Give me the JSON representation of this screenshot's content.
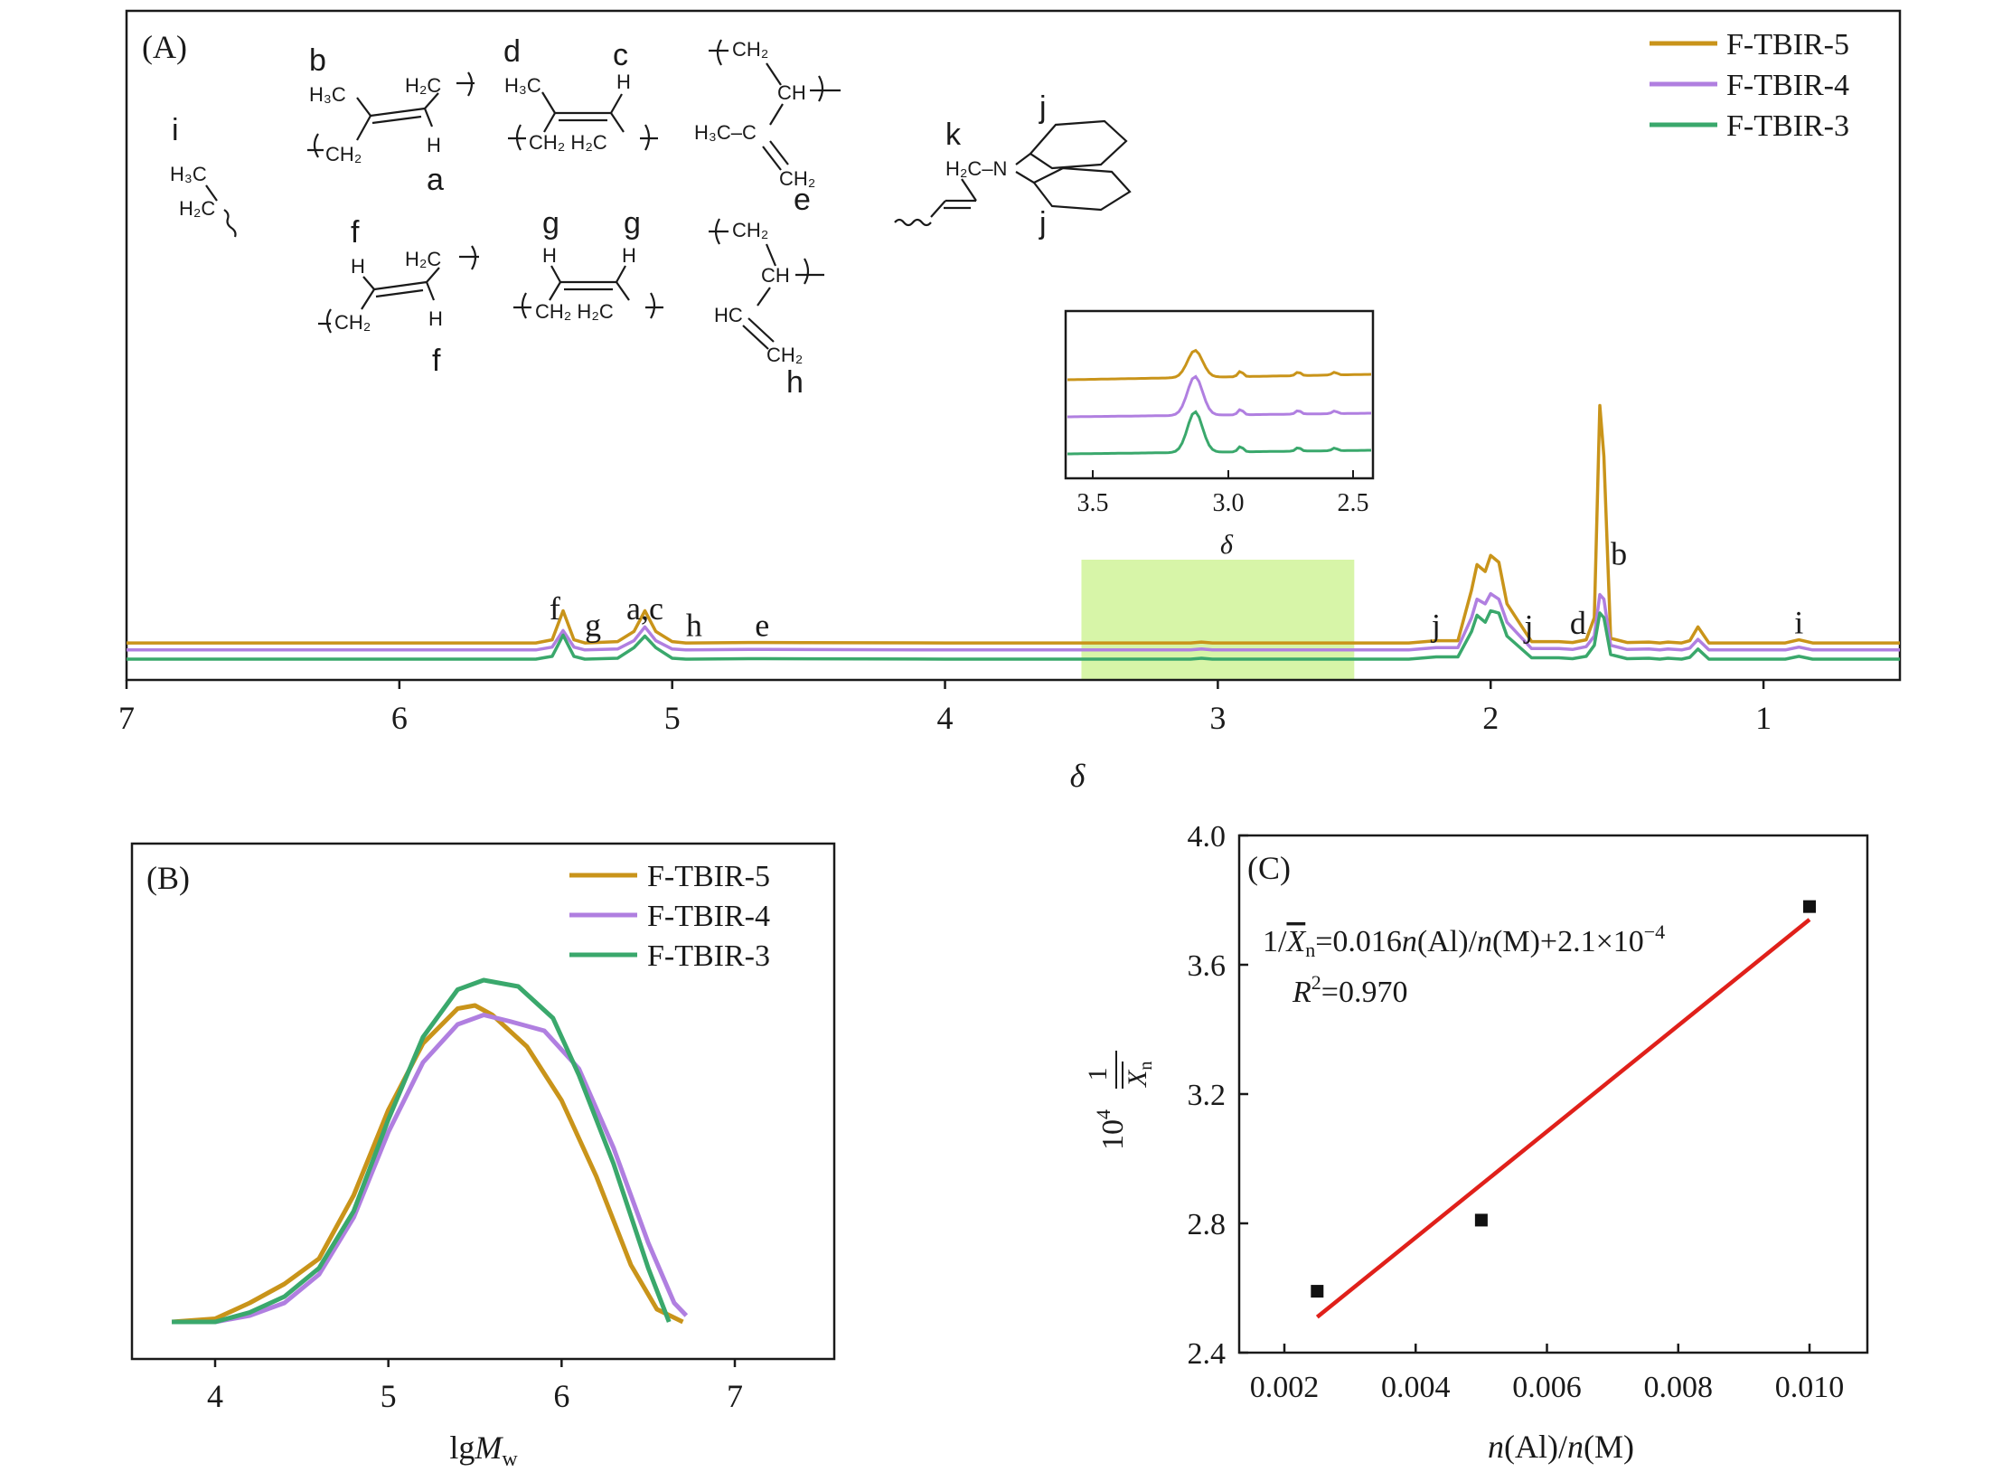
{
  "colors": {
    "F-TBIR-5": "#c9941a",
    "F-TBIR-4": "#b07fe0",
    "F-TBIR-3": "#3aa86c",
    "fit_line": "#e0201a",
    "highlight": "#d7f5a8",
    "axis": "#1a1a1a"
  },
  "chart_data": [
    {
      "id": "A",
      "type": "line",
      "panel_label": "(A)",
      "xlabel": "δ",
      "xlim": [
        7,
        0.5
      ],
      "x_ticks": [
        7,
        6,
        5,
        4,
        3,
        2,
        1
      ],
      "x_tick_labels": [
        "7",
        "6",
        "5",
        "4",
        "3",
        "2",
        "1"
      ],
      "y_ticks_shown": false,
      "legend": {
        "position": "top-right",
        "entries": [
          "F-TBIR-5",
          "F-TBIR-4",
          "F-TBIR-3"
        ]
      },
      "series": [
        {
          "name": "F-TBIR-5",
          "baseline": 0.35,
          "x": [
            0.5,
            0.82,
            0.87,
            0.92,
            1.2,
            1.24,
            1.27,
            1.3,
            1.35,
            1.38,
            1.42,
            1.5,
            1.56,
            1.585,
            1.6,
            1.62,
            1.65,
            1.7,
            1.75,
            1.85,
            1.94,
            1.97,
            2.0,
            2.02,
            2.05,
            2.07,
            2.12,
            2.2,
            2.3,
            2.8,
            3.02,
            3.06,
            3.1,
            3.5,
            4.0,
            4.66,
            4.72,
            4.95,
            5.0,
            5.06,
            5.1,
            5.14,
            5.2,
            5.32,
            5.36,
            5.4,
            5.44,
            5.5,
            6.0,
            7.0
          ],
          "y": [
            0.35,
            0.35,
            0.42,
            0.35,
            0.35,
            0.7,
            0.4,
            0.35,
            0.37,
            0.35,
            0.37,
            0.36,
            0.45,
            4.4,
            5.5,
            0.9,
            0.42,
            0.36,
            0.38,
            0.38,
            1.2,
            2.1,
            2.25,
            1.9,
            2.05,
            1.5,
            0.4,
            0.4,
            0.35,
            0.35,
            0.35,
            0.37,
            0.35,
            0.35,
            0.35,
            0.36,
            0.36,
            0.35,
            0.38,
            0.6,
            1.05,
            0.6,
            0.38,
            0.35,
            0.42,
            1.05,
            0.42,
            0.35,
            0.35,
            0.35
          ]
        },
        {
          "name": "F-TBIR-4",
          "baseline": 0.2,
          "x": [
            0.5,
            0.82,
            0.87,
            0.92,
            1.2,
            1.24,
            1.27,
            1.3,
            1.35,
            1.38,
            1.42,
            1.5,
            1.56,
            1.585,
            1.6,
            1.62,
            1.65,
            1.7,
            1.75,
            1.85,
            1.94,
            1.97,
            2.0,
            2.02,
            2.05,
            2.07,
            2.12,
            2.2,
            2.3,
            2.8,
            3.02,
            3.06,
            3.1,
            3.5,
            4.0,
            4.66,
            4.72,
            4.95,
            5.0,
            5.06,
            5.1,
            5.14,
            5.2,
            5.32,
            5.36,
            5.4,
            5.44,
            5.5,
            6.0,
            7.0
          ],
          "y": [
            0.2,
            0.2,
            0.26,
            0.2,
            0.2,
            0.43,
            0.24,
            0.2,
            0.22,
            0.2,
            0.22,
            0.21,
            0.3,
            1.3,
            1.4,
            0.5,
            0.27,
            0.21,
            0.23,
            0.23,
            0.8,
            1.3,
            1.42,
            1.2,
            1.3,
            0.9,
            0.25,
            0.25,
            0.2,
            0.2,
            0.2,
            0.22,
            0.2,
            0.2,
            0.2,
            0.21,
            0.21,
            0.2,
            0.22,
            0.4,
            0.7,
            0.4,
            0.22,
            0.2,
            0.26,
            0.62,
            0.26,
            0.2,
            0.2,
            0.2
          ]
        },
        {
          "name": "F-TBIR-3",
          "baseline": 0.0,
          "x": [
            0.5,
            0.82,
            0.87,
            0.92,
            1.2,
            1.24,
            1.27,
            1.3,
            1.35,
            1.38,
            1.42,
            1.5,
            1.56,
            1.585,
            1.6,
            1.62,
            1.65,
            1.7,
            1.75,
            1.85,
            1.94,
            1.97,
            2.0,
            2.02,
            2.05,
            2.07,
            2.12,
            2.2,
            2.3,
            2.8,
            3.02,
            3.06,
            3.1,
            3.5,
            4.0,
            4.66,
            4.72,
            4.95,
            5.0,
            5.06,
            5.1,
            5.14,
            5.2,
            5.32,
            5.36,
            5.4,
            5.44,
            5.5,
            6.0,
            7.0
          ],
          "y": [
            0.0,
            0.0,
            0.06,
            0.0,
            0.0,
            0.22,
            0.04,
            0.0,
            0.02,
            0.0,
            0.02,
            0.01,
            0.1,
            0.9,
            1.0,
            0.3,
            0.06,
            0.01,
            0.03,
            0.03,
            0.5,
            1.0,
            1.05,
            0.8,
            0.95,
            0.6,
            0.05,
            0.05,
            0.0,
            0.0,
            0.0,
            0.02,
            0.0,
            0.0,
            0.0,
            0.01,
            0.01,
            0.0,
            0.02,
            0.25,
            0.5,
            0.25,
            0.02,
            0.0,
            0.06,
            0.52,
            0.06,
            0.0,
            0.0,
            0.0
          ]
        }
      ],
      "highlight_region": [
        3.5,
        2.5
      ],
      "peak_labels": [
        {
          "text": "f",
          "x": 5.43,
          "y": 0.86
        },
        {
          "text": "g",
          "x": 5.29,
          "y": 0.5
        },
        {
          "text": "a,c",
          "x": 5.1,
          "y": 0.86
        },
        {
          "text": "h",
          "x": 4.92,
          "y": 0.5
        },
        {
          "text": "e",
          "x": 4.67,
          "y": 0.5
        },
        {
          "text": "j",
          "x": 2.2,
          "y": 0.5
        },
        {
          "text": "j",
          "x": 1.86,
          "y": 0.48
        },
        {
          "text": "d",
          "x": 1.68,
          "y": 0.55
        },
        {
          "text": "b",
          "x": 1.53,
          "y": 2.05
        },
        {
          "text": "i",
          "x": 0.87,
          "y": 0.56
        }
      ],
      "inset": {
        "xlabel": "δ",
        "xlim": [
          3.5,
          2.5
        ],
        "x_tick_labels": [
          "3.5",
          "3.0",
          "2.5"
        ],
        "peak_x": 3.08
      },
      "structure_labels": [
        "i",
        "b",
        "a",
        "d",
        "c",
        "e",
        "f",
        "f",
        "g",
        "g",
        "h",
        "k",
        "j",
        "j"
      ]
    },
    {
      "id": "B",
      "type": "line",
      "panel_label": "(B)",
      "xlabel": "lg",
      "xlabel_italic": "M",
      "xlabel_sub": "w",
      "xlim": [
        3.5,
        7.6
      ],
      "x_ticks": [
        4,
        5,
        6,
        7
      ],
      "x_tick_labels": [
        "4",
        "5",
        "6",
        "7"
      ],
      "y_ticks_shown": false,
      "legend": {
        "position": "top-right",
        "entries": [
          "F-TBIR-5",
          "F-TBIR-4",
          "F-TBIR-3"
        ]
      },
      "series": [
        {
          "name": "F-TBIR-5",
          "x": [
            3.75,
            4.0,
            4.2,
            4.4,
            4.6,
            4.8,
            5.0,
            5.2,
            5.4,
            5.5,
            5.6,
            5.8,
            6.0,
            6.2,
            6.4,
            6.55,
            6.7
          ],
          "y": [
            0.0,
            0.01,
            0.06,
            0.12,
            0.2,
            0.4,
            0.67,
            0.88,
            0.99,
            1.0,
            0.97,
            0.87,
            0.7,
            0.46,
            0.18,
            0.04,
            0.0
          ]
        },
        {
          "name": "F-TBIR-4",
          "x": [
            3.75,
            4.0,
            4.2,
            4.4,
            4.6,
            4.8,
            5.0,
            5.2,
            5.4,
            5.55,
            5.7,
            5.9,
            6.1,
            6.3,
            6.5,
            6.65,
            6.72
          ],
          "y": [
            0.0,
            0.0,
            0.02,
            0.06,
            0.15,
            0.33,
            0.6,
            0.82,
            0.94,
            0.97,
            0.95,
            0.92,
            0.8,
            0.55,
            0.25,
            0.06,
            0.02
          ]
        },
        {
          "name": "F-TBIR-3",
          "x": [
            3.75,
            4.0,
            4.2,
            4.4,
            4.6,
            4.8,
            5.0,
            5.2,
            5.4,
            5.55,
            5.75,
            5.95,
            6.1,
            6.3,
            6.5,
            6.62
          ],
          "y": [
            0.0,
            0.0,
            0.03,
            0.08,
            0.17,
            0.35,
            0.64,
            0.9,
            1.05,
            1.08,
            1.06,
            0.96,
            0.78,
            0.5,
            0.17,
            0.0
          ]
        }
      ]
    },
    {
      "id": "C",
      "type": "scatter",
      "panel_label": "(C)",
      "xlabel_parts": [
        "n",
        "(Al)/",
        "n",
        "(M)"
      ],
      "ylabel_parts": [
        "10",
        "4",
        "1",
        "X",
        "n"
      ],
      "xlim": [
        0.0012,
        0.0108
      ],
      "ylim": [
        2.4,
        4.0
      ],
      "x_ticks": [
        0.002,
        0.004,
        0.006,
        0.008,
        0.01
      ],
      "x_tick_labels": [
        "0.002",
        "0.004",
        "0.006",
        "0.008",
        "0.010"
      ],
      "y_ticks": [
        2.4,
        2.8,
        3.2,
        3.6,
        4.0
      ],
      "y_tick_labels": [
        "2.4",
        "2.8",
        "3.2",
        "3.6",
        "4.0"
      ],
      "points": {
        "x": [
          0.0025,
          0.005,
          0.01
        ],
        "y": [
          2.59,
          2.81,
          3.78
        ]
      },
      "fit": {
        "x": [
          0.0025,
          0.01
        ],
        "y": [
          2.51,
          3.74
        ]
      },
      "equation_parts": [
        "1/",
        "X",
        "n",
        "=0.016",
        "n",
        "(Al)/",
        "n",
        "(M)+2.1×10",
        "−4"
      ],
      "r2_parts": [
        "R",
        "2",
        "=0.970"
      ]
    }
  ]
}
